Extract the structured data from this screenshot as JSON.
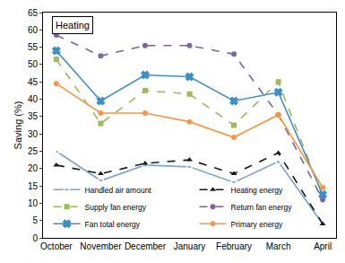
{
  "chart_data": {
    "type": "line",
    "title": "Heating",
    "y_label": "Saving (%)",
    "categories": [
      "October",
      "November",
      "December",
      "January",
      "February",
      "March",
      "April"
    ],
    "series": [
      {
        "name": "Handled air amount",
        "color": "#7ba3d4",
        "marker": "circle-open",
        "line_style": "solid",
        "values": [
          25,
          16.5,
          21,
          20.5,
          16,
          22,
          4
        ]
      },
      {
        "name": "Heating energy",
        "color": "#1a1a1a",
        "marker": "triangle-up",
        "line_style": "dash",
        "values": [
          21,
          18.5,
          21.5,
          22.5,
          18.5,
          24.5,
          4
        ]
      },
      {
        "name": "Supply fan energy",
        "color": "#9bbb59",
        "marker": "square",
        "line_style": "dash",
        "values": [
          51.5,
          33,
          42.5,
          41.5,
          32.5,
          45,
          12
        ]
      },
      {
        "name": "Return fan energy",
        "color": "#8064a2",
        "marker": "circle",
        "line_style": "dash",
        "values": [
          58.5,
          52.5,
          55.5,
          55.5,
          53,
          35.5,
          11
        ]
      },
      {
        "name": "Fan total energy",
        "color": "#3d8fc4",
        "marker": "x",
        "line_style": "solid",
        "values": [
          54,
          39.5,
          47,
          46.5,
          39.5,
          42,
          12.5
        ]
      },
      {
        "name": "Primary energy",
        "color": "#f79646",
        "marker": "circle",
        "line_style": "solid",
        "values": [
          44.5,
          36,
          36,
          33.5,
          29,
          35.5,
          14.5
        ]
      }
    ],
    "ylim": [
      0,
      65
    ],
    "yticks": [
      0,
      5,
      10,
      15,
      20,
      25,
      30,
      35,
      40,
      45,
      50,
      55,
      60,
      65
    ],
    "grid": false,
    "legend": "bottom"
  }
}
